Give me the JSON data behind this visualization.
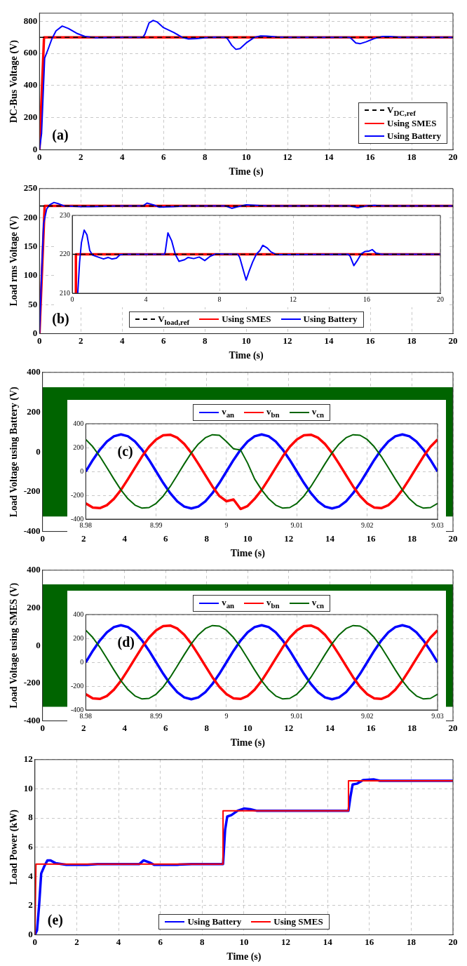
{
  "chart_data": [
    {
      "type": "line",
      "xlabel": "Time (s)",
      "ylabel": "DC-Bus Voltage (V)",
      "xlim": [
        0,
        20
      ],
      "xticks": [
        0,
        2,
        4,
        6,
        8,
        10,
        12,
        14,
        16,
        18,
        20
      ],
      "ylim": [
        0,
        850
      ],
      "yticks": [
        0,
        200,
        400,
        600,
        800
      ],
      "grid": true,
      "legend": "bottom right",
      "annotations": [
        "(a)"
      ],
      "series": [
        {
          "name": "V$_{DC,ref}$",
          "color": "#000000",
          "line_style": "dashed",
          "x": [
            0,
            20
          ],
          "values": [
            700,
            700
          ]
        },
        {
          "name": "Using SMES",
          "color": "#ff0000",
          "x": [
            0,
            0.22,
            20
          ],
          "values": [
            0,
            700,
            700
          ]
        },
        {
          "name": "Using Battery",
          "color": "#0000ff",
          "x": [
            0,
            0.1,
            0.25,
            0.4,
            0.6,
            0.8,
            1.1,
            1.4,
            1.8,
            2.2,
            2.7,
            3.5,
            4,
            5,
            5.1,
            5.3,
            5.5,
            5.7,
            6,
            6.5,
            6.9,
            7.2,
            7.6,
            8,
            8.5,
            9,
            9.1,
            9.3,
            9.5,
            9.7,
            10,
            10.4,
            10.7,
            11,
            11.5,
            12,
            15,
            15.1,
            15.3,
            15.5,
            15.8,
            16.2,
            16.6,
            16.9,
            17.5,
            20
          ],
          "values": [
            0,
            100,
            570,
            620,
            690,
            740,
            770,
            755,
            725,
            705,
            697,
            699,
            700,
            700,
            720,
            790,
            805,
            795,
            760,
            730,
            700,
            690,
            692,
            698,
            701,
            700,
            690,
            650,
            625,
            630,
            665,
            700,
            708,
            707,
            702,
            700,
            700,
            690,
            665,
            660,
            672,
            693,
            705,
            705,
            700,
            700
          ]
        }
      ]
    },
    {
      "type": "line",
      "xlabel": "Time (s)",
      "ylabel": "Load rms Voltage (V)",
      "xlim": [
        0,
        20
      ],
      "xticks": [
        0,
        2,
        4,
        6,
        8,
        10,
        12,
        14,
        16,
        18,
        20
      ],
      "ylim": [
        0,
        250
      ],
      "yticks": [
        0,
        50,
        100,
        150,
        200,
        250
      ],
      "grid": true,
      "legend": "bottom",
      "annotations": [
        "(b)"
      ],
      "series": [
        {
          "name": "V$_{load,ref}$",
          "color": "#000000",
          "line_style": "dashed",
          "x": [
            0,
            20
          ],
          "values": [
            220,
            220
          ]
        },
        {
          "name": "Using SMES",
          "color": "#ff0000",
          "x": [
            0,
            0.25,
            20
          ],
          "values": [
            0,
            220,
            220
          ]
        },
        {
          "name": "Using Battery",
          "color": "#0000ff",
          "x": [
            0,
            0.1,
            0.2,
            0.35,
            0.5,
            0.7,
            0.9,
            1.2,
            2,
            2.5,
            4,
            5,
            5.2,
            5.5,
            5.8,
            6.5,
            7,
            9,
            9.3,
            9.6,
            10,
            10.5,
            11,
            15,
            15.4,
            15.8,
            16.2,
            16.6,
            20
          ],
          "values": [
            0,
            100,
            190,
            215,
            222,
            226,
            224,
            220,
            219,
            219,
            220,
            220,
            225,
            222,
            218,
            219,
            220,
            220,
            216,
            219,
            222,
            221,
            220,
            220,
            217,
            220,
            221,
            220,
            220
          ]
        }
      ]
    },
    {
      "type": "line",
      "xlim": [
        0,
        20
      ],
      "xticks": [
        0,
        4,
        8,
        12,
        16,
        20
      ],
      "ylim": [
        210,
        230
      ],
      "yticks": [
        210,
        220,
        230
      ],
      "grid": true,
      "series": [
        {
          "color": "#000000",
          "line_style": "dashed",
          "x": [
            0,
            20
          ],
          "values": [
            220,
            220
          ]
        },
        {
          "color": "#ff0000",
          "x": [
            0.2,
            0.2,
            20
          ],
          "values": [
            210,
            220,
            220
          ]
        },
        {
          "color": "#0000ff",
          "x": [
            0.3,
            0.4,
            0.5,
            0.65,
            0.8,
            0.95,
            1.1,
            1.4,
            1.7,
            1.95,
            2.15,
            2.4,
            2.6,
            3,
            4,
            5,
            5.05,
            5.2,
            5.4,
            5.6,
            5.8,
            6.1,
            6.3,
            6.6,
            6.9,
            7.2,
            7.5,
            7.8,
            9,
            9.1,
            9.35,
            9.45,
            9.6,
            9.8,
            10,
            10.2,
            10.35,
            10.6,
            10.8,
            11.1,
            15,
            15.1,
            15.3,
            15.5,
            15.7,
            15.9,
            16.1,
            16.3,
            16.5,
            16.8,
            20
          ],
          "values": [
            210,
            218,
            223,
            226.2,
            225,
            221,
            219.8,
            219.3,
            218.8,
            219.2,
            218.8,
            219,
            219.9,
            220,
            220,
            220,
            220.5,
            225.5,
            223.5,
            220,
            218.2,
            218.6,
            219.2,
            218.9,
            219.3,
            218.4,
            219.5,
            220.1,
            220,
            219.2,
            215,
            213.4,
            215.5,
            218,
            220,
            221,
            222.3,
            221.6,
            220.6,
            219.9,
            220,
            219.5,
            217.1,
            218.5,
            220.1,
            220.7,
            220.8,
            221.2,
            220.3,
            220,
            220
          ]
        }
      ]
    },
    {
      "type": "line",
      "xlabel": "Time (s)",
      "ylabel": "Load Voltage using Battery (V)",
      "xlim": [
        0,
        20
      ],
      "xticks": [
        0,
        2,
        4,
        6,
        8,
        10,
        12,
        14,
        16,
        18,
        20
      ],
      "ylim": [
        -400,
        400
      ],
      "yticks": [
        -400,
        -200,
        0,
        200,
        400
      ],
      "grid": true,
      "bands": [
        {
          "axis": "y",
          "from": -325,
          "to": 325,
          "color": "#006400"
        }
      ]
    },
    {
      "type": "line",
      "xlim": [
        8.98,
        9.03
      ],
      "xticks": [
        8.98,
        8.99,
        9,
        9.01,
        9.02,
        9.03
      ],
      "ylim": [
        -400,
        400
      ],
      "yticks": [
        -400,
        -200,
        0,
        200,
        400
      ],
      "grid": true,
      "legend": "top",
      "annotations": [
        "(c)"
      ],
      "x": [
        8.98,
        8.981,
        8.982,
        8.983,
        8.984,
        8.985,
        8.986,
        8.987,
        8.988,
        8.989,
        8.99,
        8.991,
        8.992,
        8.993,
        8.994,
        8.995,
        8.996,
        8.997,
        8.998,
        8.999,
        9,
        9.001,
        9.002,
        9.003,
        9.004,
        9.005,
        9.006,
        9.007,
        9.008,
        9.009,
        9.01,
        9.011,
        9.012,
        9.013,
        9.014,
        9.015,
        9.016,
        9.017,
        9.018,
        9.019,
        9.02,
        9.021,
        9.022,
        9.023,
        9.024,
        9.025,
        9.026,
        9.027,
        9.028,
        9.029,
        9.03
      ],
      "series": [
        {
          "name": "v$_{an}$",
          "color": "#0000ff",
          "values": [
            0,
            96,
            182,
            251,
            295,
            310,
            295,
            251,
            182,
            96,
            0,
            -96,
            -182,
            -251,
            -295,
            -310,
            -295,
            -251,
            -182,
            -96,
            0,
            96,
            182,
            251,
            295,
            310,
            295,
            251,
            182,
            96,
            0,
            -96,
            -182,
            -251,
            -295,
            -310,
            -295,
            -251,
            -182,
            -96,
            0,
            96,
            182,
            251,
            295,
            310,
            295,
            251,
            182,
            96,
            0
          ]
        },
        {
          "name": "v$_{bn}$",
          "color": "#ff0000",
          "values": [
            -268,
            -303,
            -308,
            -283,
            -230,
            -155,
            -64,
            32,
            126,
            207,
            268,
            303,
            308,
            283,
            230,
            155,
            64,
            -32,
            -126,
            -207,
            -250,
            -235,
            -315,
            -290,
            -230,
            -155,
            -64,
            32,
            126,
            207,
            268,
            303,
            308,
            283,
            230,
            155,
            64,
            -32,
            -126,
            -207,
            -268,
            -303,
            -308,
            -283,
            -230,
            -155,
            -64,
            32,
            126,
            207,
            268
          ]
        },
        {
          "name": "v$_{cn}$",
          "color": "#006400",
          "values": [
            268,
            207,
            126,
            32,
            -64,
            -155,
            -230,
            -283,
            -308,
            -303,
            -268,
            -207,
            -126,
            -32,
            64,
            155,
            230,
            283,
            308,
            303,
            250,
            190,
            180,
            70,
            -64,
            -155,
            -230,
            -283,
            -308,
            -303,
            -268,
            -207,
            -126,
            -32,
            64,
            155,
            230,
            283,
            308,
            303,
            268,
            207,
            126,
            32,
            -64,
            -155,
            -230,
            -283,
            -308,
            -303,
            -268
          ]
        }
      ]
    },
    {
      "type": "line",
      "xlabel": "Time (s)",
      "ylabel": "Load Voltage using SMES (V)",
      "xlim": [
        0,
        20
      ],
      "xticks": [
        0,
        2,
        4,
        6,
        8,
        10,
        12,
        14,
        16,
        18,
        20
      ],
      "ylim": [
        -400,
        400
      ],
      "yticks": [
        -400,
        -200,
        0,
        200,
        400
      ],
      "grid": true,
      "bands": [
        {
          "axis": "y",
          "from": -325,
          "to": 325,
          "color": "#006400"
        }
      ]
    },
    {
      "type": "line",
      "xlim": [
        8.98,
        9.03
      ],
      "xticks": [
        8.98,
        8.99,
        9,
        9.01,
        9.02,
        9.03
      ],
      "ylim": [
        -400,
        400
      ],
      "yticks": [
        -400,
        -200,
        0,
        200,
        400
      ],
      "grid": true,
      "legend": "top",
      "annotations": [
        "(d)"
      ],
      "x": [
        8.98,
        8.981,
        8.982,
        8.983,
        8.984,
        8.985,
        8.986,
        8.987,
        8.988,
        8.989,
        8.99,
        8.991,
        8.992,
        8.993,
        8.994,
        8.995,
        8.996,
        8.997,
        8.998,
        8.999,
        9,
        9.001,
        9.002,
        9.003,
        9.004,
        9.005,
        9.006,
        9.007,
        9.008,
        9.009,
        9.01,
        9.011,
        9.012,
        9.013,
        9.014,
        9.015,
        9.016,
        9.017,
        9.018,
        9.019,
        9.02,
        9.021,
        9.022,
        9.023,
        9.024,
        9.025,
        9.026,
        9.027,
        9.028,
        9.029,
        9.03
      ],
      "series": [
        {
          "name": "v$_{an}$",
          "color": "#0000ff",
          "values": [
            0,
            96,
            182,
            251,
            295,
            310,
            295,
            251,
            182,
            96,
            0,
            -96,
            -182,
            -251,
            -295,
            -310,
            -295,
            -251,
            -182,
            -96,
            0,
            96,
            182,
            251,
            295,
            310,
            295,
            251,
            182,
            96,
            0,
            -96,
            -182,
            -251,
            -295,
            -310,
            -295,
            -251,
            -182,
            -96,
            0,
            96,
            182,
            251,
            295,
            310,
            295,
            251,
            182,
            96,
            0
          ]
        },
        {
          "name": "v$_{bn}$",
          "color": "#ff0000",
          "values": [
            -268,
            -303,
            -308,
            -283,
            -230,
            -155,
            -64,
            32,
            126,
            207,
            268,
            303,
            308,
            283,
            230,
            155,
            64,
            -32,
            -126,
            -207,
            -268,
            -303,
            -308,
            -283,
            -230,
            -155,
            -64,
            32,
            126,
            207,
            268,
            303,
            308,
            283,
            230,
            155,
            64,
            -32,
            -126,
            -207,
            -268,
            -303,
            -308,
            -283,
            -230,
            -155,
            -64,
            32,
            126,
            207,
            268
          ]
        },
        {
          "name": "v$_{cn}$",
          "color": "#006400",
          "values": [
            268,
            207,
            126,
            32,
            -64,
            -155,
            -230,
            -283,
            -308,
            -303,
            -268,
            -207,
            -126,
            -32,
            64,
            155,
            230,
            283,
            308,
            303,
            268,
            207,
            126,
            32,
            -64,
            -155,
            -230,
            -283,
            -308,
            -303,
            -268,
            -207,
            -126,
            -32,
            64,
            155,
            230,
            283,
            308,
            303,
            268,
            207,
            126,
            32,
            -64,
            -155,
            -230,
            -283,
            -308,
            -303,
            -268
          ]
        }
      ]
    },
    {
      "type": "line",
      "xlabel": "Time (s)",
      "ylabel": "Load Power (kW)",
      "xlim": [
        0,
        20
      ],
      "xticks": [
        0,
        2,
        4,
        6,
        8,
        10,
        12,
        14,
        16,
        18,
        20
      ],
      "ylim": [
        0,
        12
      ],
      "yticks": [
        0,
        2,
        4,
        6,
        8,
        10,
        12
      ],
      "grid": true,
      "legend": "bottom",
      "annotations": [
        "(e)"
      ],
      "series": [
        {
          "name": "Using Battery",
          "color": "#0000ff",
          "x": [
            0,
            0.1,
            0.2,
            0.3,
            0.45,
            0.6,
            0.75,
            1,
            1.5,
            2.5,
            3,
            5,
            5.2,
            5.5,
            5.7,
            6.2,
            6.8,
            7.5,
            9,
            9.1,
            9.2,
            9.4,
            9.7,
            10,
            10.3,
            10.6,
            11,
            15,
            15.1,
            15.2,
            15.4,
            15.7,
            16.2,
            16.5,
            20
          ],
          "values": [
            0,
            0.3,
            2,
            4.2,
            4.7,
            5.1,
            5.1,
            4.9,
            4.8,
            4.8,
            4.85,
            4.85,
            5.1,
            4.95,
            4.8,
            4.8,
            4.8,
            4.85,
            4.85,
            7.2,
            8.1,
            8.2,
            8.5,
            8.65,
            8.6,
            8.5,
            8.5,
            8.5,
            9.5,
            10.3,
            10.35,
            10.6,
            10.65,
            10.55,
            10.55
          ]
        },
        {
          "name": "Using SMES",
          "color": "#ff0000",
          "x": [
            0,
            0.05,
            9,
            9,
            15,
            15,
            20
          ],
          "values": [
            0,
            4.85,
            4.85,
            8.5,
            8.5,
            10.55,
            10.55
          ]
        }
      ]
    }
  ]
}
